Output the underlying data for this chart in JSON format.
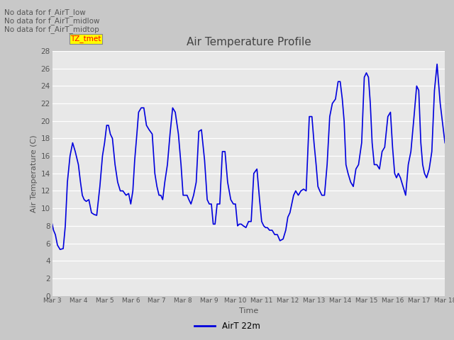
{
  "title": "Air Temperature Profile",
  "xlabel": "Time",
  "ylabel": "Air Temperature (C)",
  "line_color": "#0000dd",
  "line_width": 1.2,
  "bg_color": "#c8c8c8",
  "plot_bg_color": "#e8e8e8",
  "ylim": [
    0,
    28
  ],
  "yticks": [
    0,
    2,
    4,
    6,
    8,
    10,
    12,
    14,
    16,
    18,
    20,
    22,
    24,
    26,
    28
  ],
  "legend_label": "AirT 22m",
  "annotations": [
    "No data for f_AirT_low",
    "No data for f_AirT_midlow",
    "No data for f_AirT_midtop"
  ],
  "tz_label": "TZ_tmet",
  "x_tick_labels": [
    "Mar 3",
    "Mar 4",
    "Mar 5",
    "Mar 6",
    "Mar 7",
    "Mar 8",
    "Mar 9",
    "Mar 10",
    "Mar 11",
    "Mar 12",
    "Mar 13",
    "Mar 14",
    "Mar 15",
    "Mar 16",
    "Mar 17",
    "Mar 18"
  ],
  "time_data": [
    0.0,
    0.05,
    0.12,
    0.2,
    0.3,
    0.42,
    0.5,
    0.58,
    0.68,
    0.78,
    0.88,
    1.0,
    1.08,
    1.15,
    1.22,
    1.3,
    1.4,
    1.5,
    1.6,
    1.7,
    1.82,
    1.92,
    2.0,
    2.08,
    2.15,
    2.22,
    2.3,
    2.4,
    2.5,
    2.6,
    2.7,
    2.82,
    2.92,
    3.0,
    3.08,
    3.15,
    3.22,
    3.3,
    3.4,
    3.5,
    3.6,
    3.7,
    3.82,
    3.92,
    4.0,
    4.08,
    4.15,
    4.22,
    4.3,
    4.4,
    4.5,
    4.6,
    4.7,
    4.82,
    4.92,
    5.0,
    5.08,
    5.15,
    5.22,
    5.3,
    5.4,
    5.5,
    5.6,
    5.7,
    5.82,
    5.92,
    6.0,
    6.08,
    6.15,
    6.22,
    6.3,
    6.4,
    6.5,
    6.6,
    6.7,
    6.82,
    6.92,
    7.0,
    7.08,
    7.15,
    7.22,
    7.3,
    7.4,
    7.5,
    7.6,
    7.7,
    7.82,
    7.92,
    8.0,
    8.08,
    8.15,
    8.22,
    8.3,
    8.4,
    8.5,
    8.6,
    8.7,
    8.82,
    8.92,
    9.0,
    9.08,
    9.15,
    9.22,
    9.3,
    9.4,
    9.5,
    9.6,
    9.7,
    9.82,
    9.92,
    10.0,
    10.08,
    10.15,
    10.22,
    10.3,
    10.4,
    10.5,
    10.6,
    10.7,
    10.82,
    10.92,
    11.0,
    11.08,
    11.15,
    11.22,
    11.3,
    11.4,
    11.5,
    11.6,
    11.7,
    11.82,
    11.92,
    12.0,
    12.08,
    12.15,
    12.22,
    12.3,
    12.4,
    12.5,
    12.6,
    12.7,
    12.82,
    12.92,
    13.0,
    13.08,
    13.15,
    13.22,
    13.3,
    13.4,
    13.5,
    13.6,
    13.7,
    13.82,
    13.92,
    14.0,
    14.08,
    14.15,
    14.22,
    14.3,
    14.4,
    14.5,
    14.6,
    14.7,
    14.82,
    14.92,
    15.0
  ],
  "temp_data": [
    8.2,
    7.5,
    7.0,
    5.8,
    5.3,
    5.4,
    8.0,
    13.0,
    16.0,
    17.5,
    16.5,
    15.0,
    13.0,
    11.5,
    11.0,
    10.8,
    11.0,
    9.5,
    9.3,
    9.2,
    12.5,
    16.0,
    17.5,
    19.5,
    19.5,
    18.5,
    18.0,
    15.0,
    13.0,
    12.0,
    12.0,
    11.5,
    11.7,
    10.5,
    12.0,
    15.5,
    18.0,
    21.0,
    21.5,
    21.5,
    19.5,
    19.0,
    18.5,
    14.0,
    12.5,
    11.5,
    11.5,
    11.0,
    13.0,
    15.0,
    18.5,
    21.5,
    21.0,
    18.5,
    15.0,
    11.5,
    11.5,
    11.5,
    11.0,
    10.5,
    11.5,
    13.0,
    18.8,
    19.0,
    15.5,
    11.0,
    10.5,
    10.5,
    8.2,
    8.2,
    10.5,
    10.5,
    16.5,
    16.5,
    13.0,
    11.0,
    10.5,
    10.5,
    8.0,
    8.2,
    8.2,
    8.0,
    7.8,
    8.5,
    8.5,
    14.0,
    14.5,
    11.0,
    8.5,
    8.0,
    7.8,
    7.8,
    7.5,
    7.5,
    7.0,
    7.0,
    6.3,
    6.5,
    7.5,
    9.0,
    9.5,
    10.5,
    11.5,
    12.0,
    11.5,
    12.0,
    12.2,
    12.0,
    20.5,
    20.5,
    17.5,
    15.0,
    12.5,
    12.0,
    11.5,
    11.5,
    15.0,
    20.5,
    22.0,
    22.5,
    24.5,
    24.5,
    22.5,
    20.0,
    15.0,
    14.0,
    13.0,
    12.5,
    14.5,
    15.0,
    17.5,
    25.0,
    25.5,
    25.0,
    22.0,
    17.5,
    15.0,
    15.0,
    14.5,
    16.5,
    17.0,
    20.5,
    21.0,
    17.0,
    14.0,
    13.5,
    14.0,
    13.5,
    12.5,
    11.5,
    15.0,
    16.5,
    20.5,
    24.0,
    23.5,
    17.5,
    15.0,
    14.0,
    13.5,
    14.5,
    16.5,
    23.5,
    26.5,
    22.0,
    19.5,
    17.5
  ]
}
